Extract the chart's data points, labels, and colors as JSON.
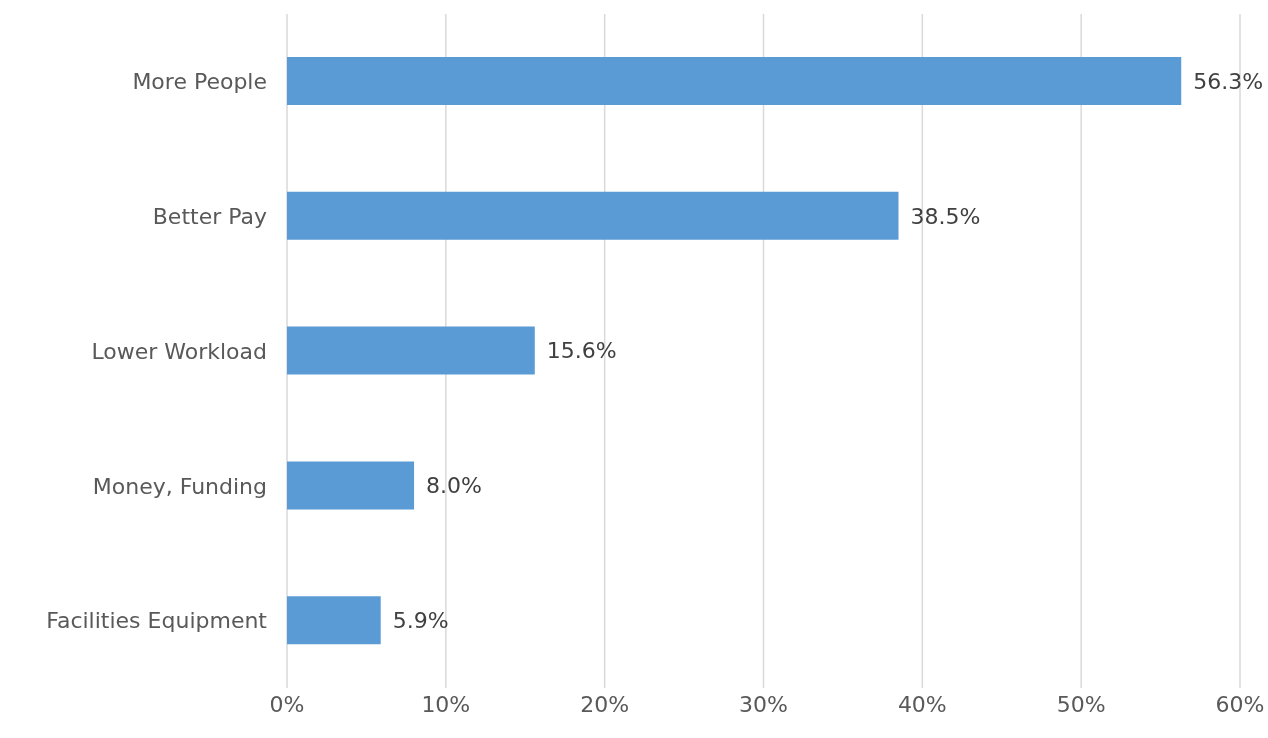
{
  "chart_data": {
    "type": "bar",
    "orientation": "horizontal",
    "categories": [
      "More People",
      "Better Pay",
      "Lower Workload",
      "Money, Funding",
      "Facilities Equipment"
    ],
    "values": [
      56.3,
      38.5,
      15.6,
      8.0,
      5.9
    ],
    "value_labels": [
      "56.3%",
      "38.5%",
      "15.6%",
      "8.0%",
      "5.9%"
    ],
    "color": "#5b9bd5",
    "xlim": [
      0,
      60
    ],
    "xticks": [
      {
        "value": 0,
        "label": "0%"
      },
      {
        "value": 10,
        "label": "10%"
      },
      {
        "value": 20,
        "label": "20%"
      },
      {
        "value": 30,
        "label": "30%"
      },
      {
        "value": 40,
        "label": "40%"
      },
      {
        "value": 50,
        "label": "50%"
      },
      {
        "value": 60,
        "label": "60%"
      }
    ],
    "grid": "x",
    "legend": false
  }
}
